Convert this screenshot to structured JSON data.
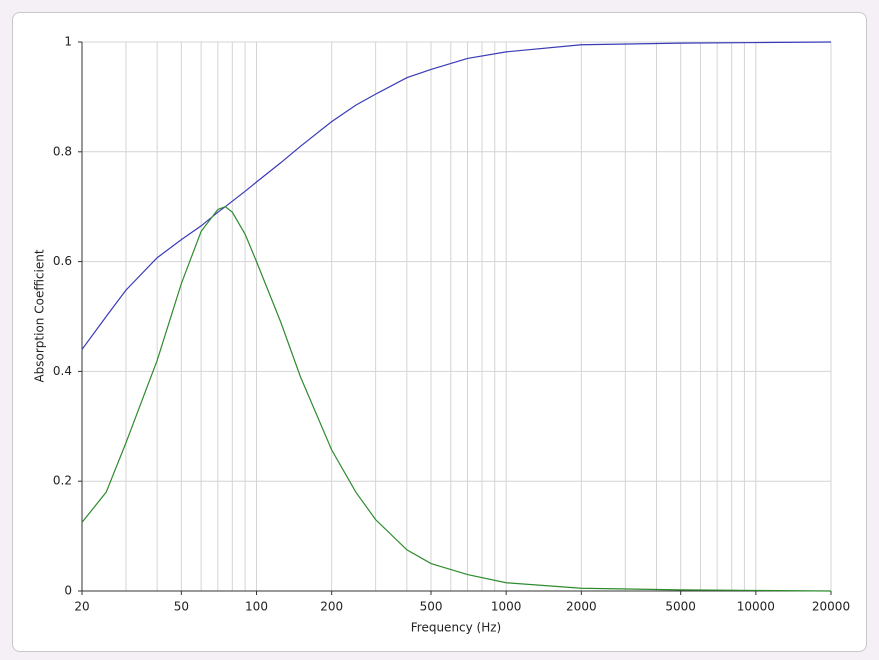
{
  "chart_data": {
    "type": "line",
    "x_label": "Frequency (Hz)",
    "y_label": "Absorption Coefficient",
    "x_scale": "log",
    "grid": true,
    "xlim": [
      20,
      20000
    ],
    "xticks": [
      20,
      50,
      100,
      200,
      500,
      1000,
      2000,
      5000,
      10000,
      20000
    ],
    "xminor": [
      30,
      40,
      60,
      70,
      80,
      90,
      300,
      400,
      600,
      700,
      800,
      900,
      3000,
      4000,
      6000,
      7000,
      8000,
      9000
    ],
    "ylim": [
      0,
      1
    ],
    "yticks": [
      0,
      0.2,
      0.4,
      0.6,
      0.8,
      1
    ],
    "x": [
      20,
      25,
      30,
      40,
      50,
      60,
      70,
      75,
      80,
      90,
      100,
      125,
      150,
      200,
      250,
      300,
      400,
      500,
      700,
      1000,
      2000,
      5000,
      10000,
      20000
    ],
    "series": [
      {
        "color": "#3a3ab8",
        "values": [
          0.44,
          0.5,
          0.548,
          0.607,
          0.64,
          0.665,
          0.69,
          0.7,
          0.71,
          0.728,
          0.745,
          0.78,
          0.81,
          0.855,
          0.885,
          0.905,
          0.935,
          0.95,
          0.97,
          0.982,
          0.995,
          0.998,
          0.999,
          1
        ]
      },
      {
        "color": "#2e8b2e",
        "values": [
          0.125,
          0.18,
          0.27,
          0.42,
          0.56,
          0.655,
          0.695,
          0.7,
          0.69,
          0.65,
          0.6,
          0.49,
          0.39,
          0.257,
          0.18,
          0.13,
          0.075,
          0.05,
          0.03,
          0.015,
          0.005,
          0.002,
          0.001,
          0
        ]
      }
    ]
  }
}
